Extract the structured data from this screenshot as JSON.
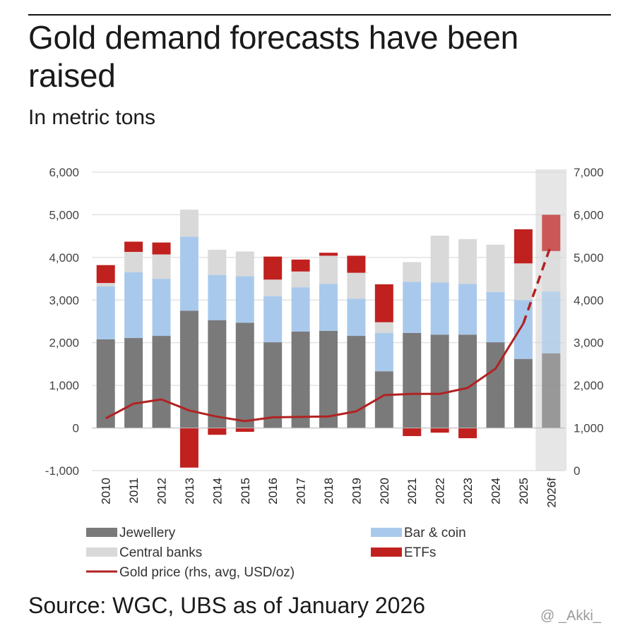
{
  "header": {
    "title": "Gold demand forecasts have been raised",
    "subtitle": "In metric tons"
  },
  "footer": {
    "source": "Source: WGC, UBS as of January 2026",
    "watermark": "@ _Akki_"
  },
  "colors": {
    "jewellery": "#7a7a7a",
    "bar_coin": "#a9c9ec",
    "central_banks": "#d9d9d9",
    "etfs": "#c0211f",
    "gold_price": "#b22222",
    "forecast_band": "#e6e6e6"
  },
  "chart_data": {
    "type": "bar",
    "stacked": true,
    "title": "Gold demand forecasts have been raised",
    "subtitle": "In metric tons",
    "categories": [
      "2010",
      "2011",
      "2012",
      "2013",
      "2014",
      "2015",
      "2016",
      "2017",
      "2018",
      "2019",
      "2020",
      "2021",
      "2022",
      "2023",
      "2024",
      "2025",
      "2026f"
    ],
    "forecast_category": "2026f",
    "y_left": {
      "min": -1000,
      "max": 6000,
      "step": 1000,
      "ticks": [
        "6,000",
        "5,000",
        "4,000",
        "3,000",
        "2,000",
        "1,000",
        "0",
        "-1,000"
      ]
    },
    "y_right": {
      "min": 0,
      "max": 7000,
      "step": 1000,
      "ticks": [
        "7,000",
        "6,000",
        "5,000",
        "4,000",
        "3,000",
        "2,000",
        "1,000",
        "0"
      ]
    },
    "series": [
      {
        "name": "Jewellery",
        "key": "jewellery",
        "values": [
          2080,
          2110,
          2160,
          2750,
          2530,
          2470,
          2010,
          2260,
          2280,
          2160,
          1330,
          2230,
          2190,
          2190,
          2010,
          1620,
          1750
        ]
      },
      {
        "name": "Bar & coin",
        "key": "bar_coin",
        "values": [
          1240,
          1540,
          1340,
          1740,
          1060,
          1090,
          1080,
          1040,
          1100,
          870,
          900,
          1200,
          1220,
          1190,
          1180,
          1380,
          1450
        ]
      },
      {
        "name": "Central banks",
        "key": "central_banks",
        "values": [
          80,
          480,
          570,
          630,
          590,
          580,
          390,
          370,
          660,
          610,
          250,
          460,
          1100,
          1050,
          1110,
          860,
          950
        ]
      },
      {
        "name": "ETFs",
        "key": "etfs",
        "values": [
          420,
          240,
          280,
          -930,
          -160,
          -90,
          540,
          280,
          70,
          400,
          890,
          -190,
          -110,
          -240,
          0,
          800,
          850
        ]
      }
    ],
    "line": {
      "name": "Gold price (rhs, avg, USD/oz)",
      "axis": "right",
      "values": [
        1225,
        1570,
        1670,
        1410,
        1265,
        1160,
        1250,
        1260,
        1270,
        1390,
        1770,
        1800,
        1800,
        1940,
        2390,
        3450,
        5300
      ],
      "forecast_from_index": 15
    },
    "legend": [
      {
        "label": "Jewellery",
        "key": "jewellery",
        "shape": "box"
      },
      {
        "label": "Bar & coin",
        "key": "bar_coin",
        "shape": "box"
      },
      {
        "label": "Central banks",
        "key": "central_banks",
        "shape": "box"
      },
      {
        "label": "ETFs",
        "key": "etfs",
        "shape": "box"
      },
      {
        "label": "Gold price (rhs, avg, USD/oz)",
        "key": "gold_price",
        "shape": "line"
      }
    ],
    "legend_position": "bottom",
    "grid": true
  }
}
